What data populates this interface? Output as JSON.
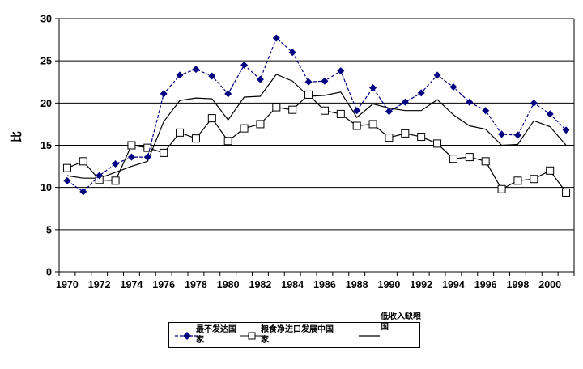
{
  "chart_data": {
    "type": "line",
    "title": "",
    "xlabel": "",
    "ylabel": "比",
    "ylim": [
      0,
      30
    ],
    "y_ticks": [
      0,
      5,
      10,
      15,
      20,
      25,
      30
    ],
    "grid": "horizontal",
    "legend_position": "bottom",
    "x": [
      1970,
      1971,
      1972,
      1973,
      1974,
      1975,
      1976,
      1977,
      1978,
      1979,
      1980,
      1981,
      1982,
      1983,
      1984,
      1985,
      1986,
      1987,
      1988,
      1989,
      1990,
      1991,
      1992,
      1993,
      1994,
      1995,
      1996,
      1997,
      1998,
      1999,
      2000,
      2001
    ],
    "x_tick_labels": [
      "1970",
      "1972",
      "1974",
      "1976",
      "1978",
      "1980",
      "1982",
      "1984",
      "1986",
      "1988",
      "1990",
      "1992",
      "1994",
      "1996",
      "1998",
      "2000"
    ],
    "series": [
      {
        "name": "最不发达国家",
        "marker": "diamond",
        "color": "#000080",
        "line_style": "dashed",
        "values": [
          10.8,
          9.5,
          11.4,
          12.8,
          13.6,
          13.6,
          21.1,
          23.3,
          24.0,
          23.2,
          21.1,
          24.5,
          22.8,
          27.7,
          26.0,
          22.5,
          22.6,
          23.8,
          19.1,
          21.8,
          19.0,
          20.1,
          21.2,
          23.3,
          21.9,
          20.1,
          19.1,
          16.3,
          16.2,
          20.0,
          18.7,
          16.8
        ]
      },
      {
        "name": "粮食净进口发展中国家",
        "marker": "square",
        "color": "#000000",
        "marker_fill": "#ffffff",
        "line_style": "solid",
        "values": [
          12.3,
          13.1,
          10.9,
          10.8,
          15.0,
          14.7,
          14.1,
          16.5,
          15.8,
          18.2,
          15.5,
          17.0,
          17.5,
          19.5,
          19.2,
          21.0,
          19.1,
          18.7,
          17.3,
          17.5,
          15.9,
          16.4,
          16.0,
          15.2,
          13.4,
          13.6,
          13.1,
          9.8,
          10.8,
          11.0,
          12.0,
          9.4
        ]
      },
      {
        "name": "低收入缺粮国",
        "marker": "none",
        "color": "#000000",
        "line_style": "solid",
        "values": [
          11.4,
          11.1,
          11.1,
          11.8,
          12.5,
          13.1,
          17.8,
          20.3,
          20.6,
          20.5,
          18.0,
          20.7,
          20.8,
          23.4,
          22.6,
          20.8,
          20.9,
          21.3,
          18.3,
          19.9,
          19.4,
          19.1,
          19.1,
          20.4,
          18.6,
          17.3,
          16.9,
          15.0,
          15.1,
          17.9,
          17.2,
          15.0
        ]
      }
    ]
  }
}
